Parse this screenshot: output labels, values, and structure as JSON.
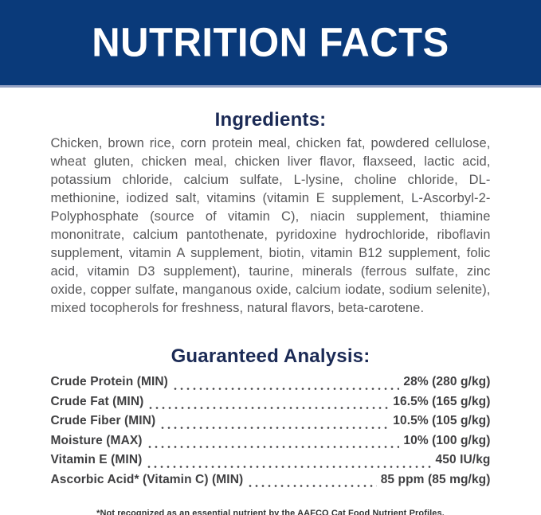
{
  "banner": {
    "title": "NUTRITION FACTS"
  },
  "ingredients": {
    "heading": "Ingredients:",
    "text": "Chicken, brown rice, corn protein meal, chicken fat, powdered cellulose, wheat gluten, chicken meal, chicken liver flavor, flaxseed, lactic acid, potassium chloride, calcium sulfate, L-lysine, choline chloride, DL-methionine, iodized salt, vitamins (vitamin E supplement, L-Ascorbyl-2-Polyphosphate (source of vitamin C), niacin supplement, thiamine mononitrate, calcium pantothenate, pyridoxine hydrochloride, riboflavin supplement, vitamin A supplement, biotin, vitamin B12 supplement, folic acid, vitamin D3 supplement), taurine, minerals (ferrous sulfate, zinc oxide, copper sulfate, manganous oxide, calcium iodate, sodium selenite), mixed tocopherols for freshness, natural flavors, beta-carotene."
  },
  "guaranteed_analysis": {
    "heading": "Guaranteed Analysis:",
    "rows": [
      {
        "label": "Crude Protein (MIN)",
        "value": "28% (280 g/kg)"
      },
      {
        "label": "Crude Fat (MIN)",
        "value": "16.5% (165 g/kg)"
      },
      {
        "label": "Crude Fiber (MIN)",
        "value": "10.5% (105 g/kg)"
      },
      {
        "label": "Moisture (MAX)",
        "value": "10% (100 g/kg)"
      },
      {
        "label": "Vitamin E (MIN)",
        "value": "450 IU/kg"
      },
      {
        "label": "Ascorbic Acid* (Vitamin C) (MIN)",
        "value": "85 ppm (85 mg/kg)"
      }
    ]
  },
  "footnote": "*Not recognized as an essential nutrient by the AAFCO Cat Food Nutrient Profiles.",
  "colors": {
    "banner_bg": "#0a3a7a",
    "banner_divider": "#93a0c2",
    "heading_navy": "#1b2a55",
    "body_gray": "#58585a",
    "analysis_text": "#3f3f41",
    "title_white": "#ffffff"
  }
}
